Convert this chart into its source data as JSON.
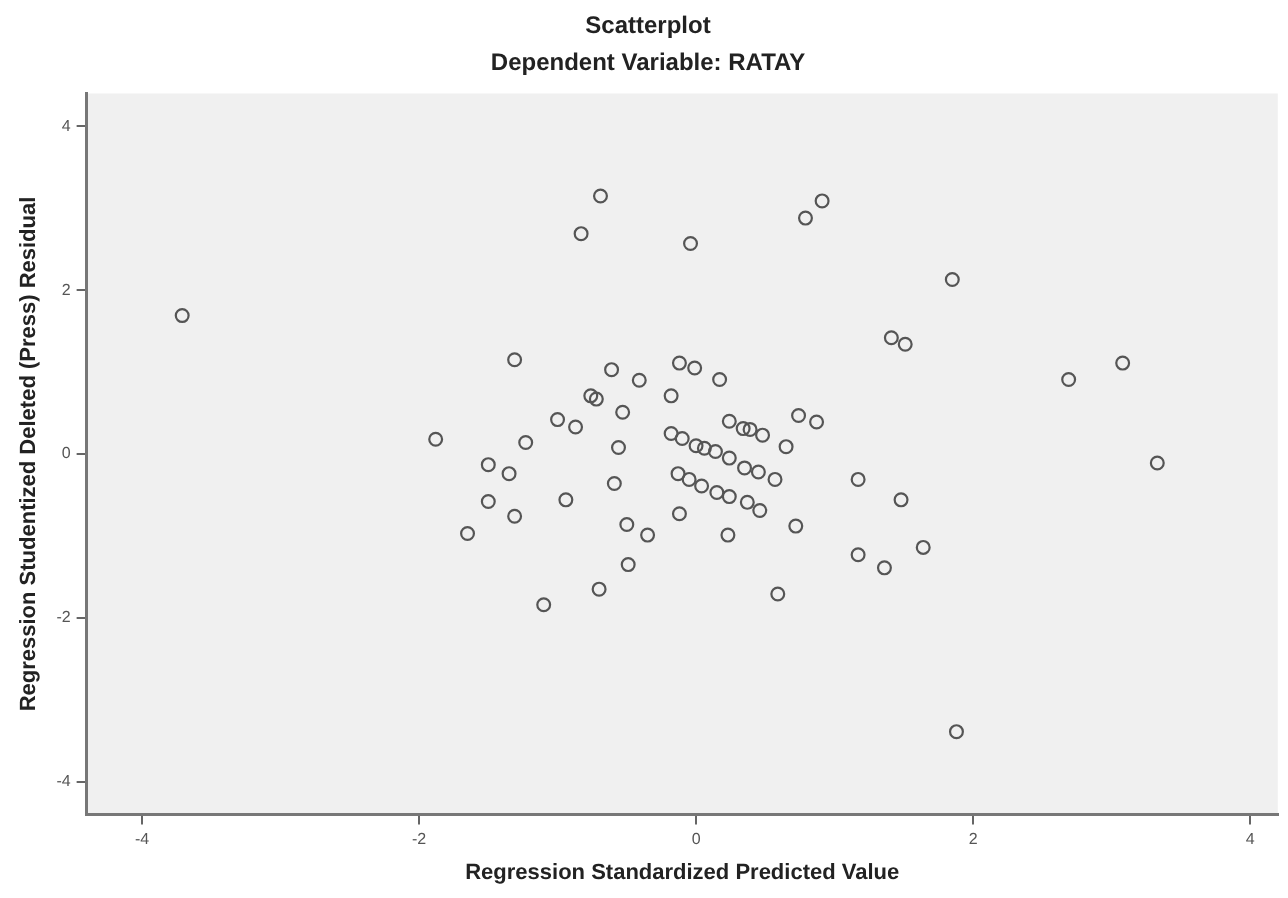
{
  "chart_data": {
    "type": "scatter",
    "title": "Scatterplot",
    "subtitle": "Dependent Variable: RATAY",
    "xlabel": "Regression Standardized Predicted Value",
    "ylabel": "Regression Studentized Deleted (Press) Residual",
    "xlim": [
      -4.4,
      4.2
    ],
    "xticks": [
      -4,
      -2,
      0,
      2,
      4
    ],
    "ylim": [
      -4.4,
      4.4
    ],
    "yticks": [
      -4,
      -2,
      0,
      2,
      4
    ],
    "grid": false,
    "marker": "circle",
    "series": [
      {
        "color": "#555555",
        "x": [
          -3.71,
          -0.69,
          -0.83,
          -0.04,
          0.79,
          0.91,
          1.85,
          1.41,
          1.51,
          3.08,
          2.69,
          3.33,
          1.88,
          -1.31,
          -0.61,
          -0.41,
          -0.12,
          -0.01,
          0.17,
          -0.76,
          -0.72,
          -0.18,
          -0.53,
          -1.0,
          -0.87,
          -1.88,
          -1.23,
          -0.56,
          -0.18,
          -0.1,
          0,
          0.06,
          0.14,
          0.24,
          0.34,
          0.39,
          0.48,
          0.24,
          0.35,
          0.45,
          0.57,
          0.65,
          0.74,
          0.87,
          -1.5,
          -1.35,
          -1.5,
          -1.31,
          -1.65,
          -0.94,
          -0.59,
          -0.13,
          -0.05,
          0.04,
          0.15,
          0.24,
          0.37,
          0.46,
          -0.12,
          -0.5,
          -0.35,
          0.23,
          0.72,
          1.17,
          1.48,
          1.64,
          1.17,
          1.36,
          -0.49,
          -0.7,
          -1.1,
          0.59
        ],
        "values": [
          1.69,
          3.15,
          2.69,
          2.57,
          2.88,
          3.09,
          2.13,
          1.42,
          1.34,
          1.11,
          0.91,
          -0.11,
          -3.39,
          1.15,
          1.03,
          0.9,
          1.11,
          1.05,
          0.91,
          0.71,
          0.67,
          0.71,
          0.51,
          0.42,
          0.33,
          0.18,
          0.14,
          0.08,
          0.25,
          0.19,
          0.1,
          0.07,
          0.03,
          0.4,
          0.31,
          0.3,
          0.23,
          -0.05,
          -0.17,
          -0.22,
          -0.31,
          0.09,
          0.47,
          0.39,
          -0.13,
          -0.24,
          -0.58,
          -0.76,
          -0.97,
          -0.56,
          -0.36,
          -0.24,
          -0.31,
          -0.39,
          -0.47,
          -0.52,
          -0.59,
          -0.69,
          -0.73,
          -0.86,
          -0.99,
          -0.99,
          -0.88,
          -0.31,
          -0.56,
          -1.14,
          -1.23,
          -1.39,
          -1.35,
          -1.65,
          -1.84,
          -1.71
        ]
      }
    ]
  }
}
